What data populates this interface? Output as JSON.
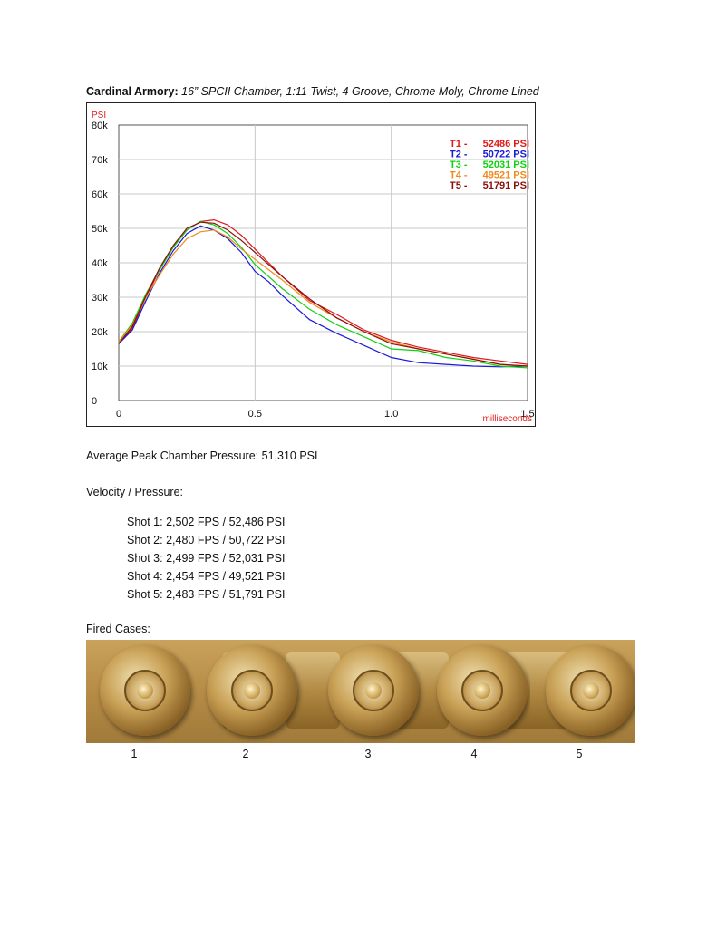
{
  "header": {
    "org": "Cardinal Armory:",
    "spec": "16” SPCII Chamber, 1:11 Twist, 4 Groove, Chrome Moly, Chrome Lined"
  },
  "chart_data": {
    "type": "line",
    "ylabel": "PSI",
    "xlabel": "milliseconds",
    "xlim": [
      0,
      1.5
    ],
    "ylim": [
      0,
      80000
    ],
    "xticks": [
      "0",
      "0.5",
      "1.0",
      "1.5"
    ],
    "yticks": [
      "0",
      "10k",
      "20k",
      "30k",
      "40k",
      "50k",
      "60k",
      "70k",
      "80k"
    ],
    "grid": true,
    "legend_position": "top-right",
    "series": [
      {
        "name": "T1",
        "peak_label": "52486 PSI",
        "color": "#e01818",
        "x": [
          0,
          0.05,
          0.1,
          0.15,
          0.2,
          0.25,
          0.3,
          0.35,
          0.4,
          0.45,
          0.5,
          0.55,
          0.6,
          0.7,
          0.8,
          0.9,
          1.0,
          1.1,
          1.2,
          1.3,
          1.4,
          1.5
        ],
        "y": [
          16500,
          21000,
          30000,
          38000,
          44500,
          49500,
          52000,
          52486,
          51000,
          48000,
          44000,
          40000,
          36000,
          29000,
          25000,
          20500,
          17500,
          15500,
          14000,
          12500,
          11500,
          10500
        ]
      },
      {
        "name": "T2",
        "peak_label": "50722 PSI",
        "color": "#1a1ad8",
        "x": [
          0,
          0.05,
          0.1,
          0.15,
          0.2,
          0.25,
          0.3,
          0.35,
          0.4,
          0.45,
          0.5,
          0.55,
          0.6,
          0.7,
          0.8,
          0.9,
          1.0,
          1.1,
          1.2,
          1.3,
          1.4,
          1.5
        ],
        "y": [
          16500,
          20500,
          29000,
          37000,
          43500,
          48500,
          50722,
          49500,
          47000,
          43000,
          37500,
          34500,
          30500,
          23500,
          19500,
          16000,
          12500,
          11000,
          10500,
          10000,
          9800,
          10000
        ]
      },
      {
        "name": "T3",
        "peak_label": "52031 PSI",
        "color": "#10d010",
        "x": [
          0,
          0.05,
          0.1,
          0.15,
          0.2,
          0.25,
          0.3,
          0.35,
          0.4,
          0.45,
          0.5,
          0.55,
          0.6,
          0.7,
          0.8,
          0.9,
          1.0,
          1.1,
          1.2,
          1.3,
          1.4,
          1.5
        ],
        "y": [
          17000,
          22500,
          31000,
          38000,
          44500,
          49500,
          52031,
          51000,
          48500,
          44500,
          39500,
          36000,
          32500,
          26500,
          22000,
          18500,
          15000,
          14500,
          12500,
          11500,
          10000,
          9500
        ]
      },
      {
        "name": "T4",
        "peak_label": "49521 PSI",
        "color": "#f08a1a",
        "x": [
          0,
          0.05,
          0.1,
          0.15,
          0.2,
          0.25,
          0.3,
          0.35,
          0.4,
          0.45,
          0.5,
          0.55,
          0.6,
          0.7,
          0.8,
          0.9,
          1.0,
          1.1,
          1.2,
          1.3,
          1.4,
          1.5
        ],
        "y": [
          17000,
          22000,
          30000,
          36500,
          42500,
          47000,
          49000,
          49521,
          47500,
          44000,
          41000,
          38000,
          35000,
          28500,
          24000,
          20000,
          17000,
          15000,
          13500,
          12000,
          10500,
          10000
        ]
      },
      {
        "name": "T5",
        "peak_label": "51791 PSI",
        "color": "#8a1010",
        "x": [
          0,
          0.05,
          0.1,
          0.15,
          0.2,
          0.25,
          0.3,
          0.35,
          0.4,
          0.45,
          0.5,
          0.55,
          0.6,
          0.7,
          0.8,
          0.9,
          1.0,
          1.1,
          1.2,
          1.3,
          1.4,
          1.5
        ],
        "y": [
          16500,
          21500,
          30500,
          38500,
          45000,
          50000,
          51791,
          51500,
          49500,
          46500,
          43000,
          39500,
          36000,
          29500,
          24000,
          20000,
          16500,
          15000,
          13500,
          12000,
          10500,
          10000
        ]
      }
    ]
  },
  "summary": {
    "avg_pressure": "Average Peak Chamber Pressure: 51,310 PSI",
    "vp_heading": "Velocity / Pressure:",
    "shots": [
      "Shot 1: 2,502 FPS / 52,486 PSI",
      "Shot 2: 2,480 FPS / 50,722 PSI",
      "Shot 3: 2,499 FPS / 52,031 PSI",
      "Shot 4: 2,454 FPS / 49,521 PSI",
      "Shot 5: 2,483 FPS / 51,791 PSI"
    ]
  },
  "cases": {
    "heading": "Fired Cases:",
    "labels": [
      "1",
      "2",
      "3",
      "4",
      "5"
    ]
  }
}
